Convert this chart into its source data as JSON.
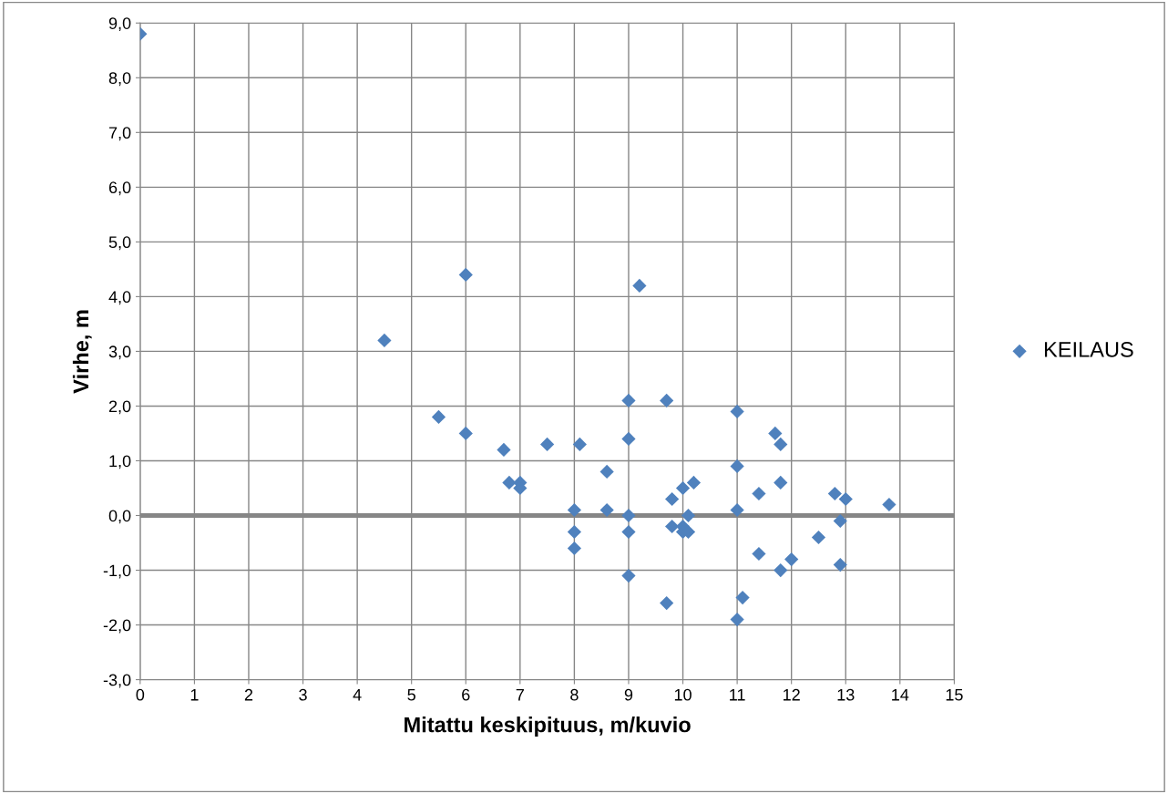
{
  "chart_data": {
    "type": "scatter",
    "xlabel": "Mitattu keskipituus, m/kuvio",
    "ylabel": "Virhe, m",
    "xlim": [
      0,
      15
    ],
    "xticks": [
      0,
      1,
      2,
      3,
      4,
      5,
      6,
      7,
      8,
      9,
      10,
      11,
      12,
      13,
      14,
      15
    ],
    "ylim": [
      -3,
      9
    ],
    "yticks": [
      {
        "value": -3,
        "label": "-3,0"
      },
      {
        "value": -2,
        "label": "-2,0"
      },
      {
        "value": -1,
        "label": "-1,0"
      },
      {
        "value": 0,
        "label": "0,0"
      },
      {
        "value": 1,
        "label": "1,0"
      },
      {
        "value": 2,
        "label": "2,0"
      },
      {
        "value": 3,
        "label": "3,0"
      },
      {
        "value": 4,
        "label": "4,0"
      },
      {
        "value": 5,
        "label": "5,0"
      },
      {
        "value": 6,
        "label": "6,0"
      },
      {
        "value": 7,
        "label": "7,0"
      },
      {
        "value": 8,
        "label": "8,0"
      },
      {
        "value": 9,
        "label": "9,0"
      }
    ],
    "grid": true,
    "legend": "right",
    "marker": "diamond",
    "ref_lines": [
      {
        "axis": "y",
        "value": 0,
        "color": "#868686"
      }
    ],
    "series": [
      {
        "name": "KEILAUS",
        "color": "#4f81bd",
        "x": [
          0,
          4.5,
          5.5,
          6.0,
          6.0,
          6.7,
          6.8,
          7.0,
          7.0,
          7.5,
          8.1,
          8.0,
          8.0,
          8.0,
          8.6,
          8.6,
          9.0,
          9.0,
          9.0,
          9.0,
          9.0,
          9.2,
          9.7,
          9.7,
          9.8,
          9.8,
          10.0,
          10.0,
          10.0,
          10.1,
          10.1,
          10.2,
          11.0,
          11.0,
          11.0,
          11.0,
          11.1,
          11.4,
          11.4,
          11.7,
          11.8,
          11.8,
          11.8,
          12.0,
          12.5,
          12.8,
          12.9,
          12.9,
          13.0,
          13.8
        ],
        "values": [
          8.8,
          3.2,
          1.8,
          4.4,
          1.5,
          1.2,
          0.6,
          0.6,
          0.5,
          1.3,
          1.3,
          0.1,
          -0.3,
          -0.6,
          0.8,
          0.1,
          2.1,
          1.4,
          0.0,
          -0.3,
          -1.1,
          4.2,
          2.1,
          -1.6,
          0.3,
          -0.2,
          0.5,
          -0.2,
          -0.3,
          0.0,
          -0.3,
          0.6,
          1.9,
          0.9,
          0.1,
          -1.9,
          -1.5,
          0.4,
          -0.7,
          1.5,
          1.3,
          0.6,
          -1.0,
          -0.8,
          -0.4,
          0.4,
          -0.1,
          -0.9,
          0.3,
          0.2
        ]
      }
    ]
  }
}
